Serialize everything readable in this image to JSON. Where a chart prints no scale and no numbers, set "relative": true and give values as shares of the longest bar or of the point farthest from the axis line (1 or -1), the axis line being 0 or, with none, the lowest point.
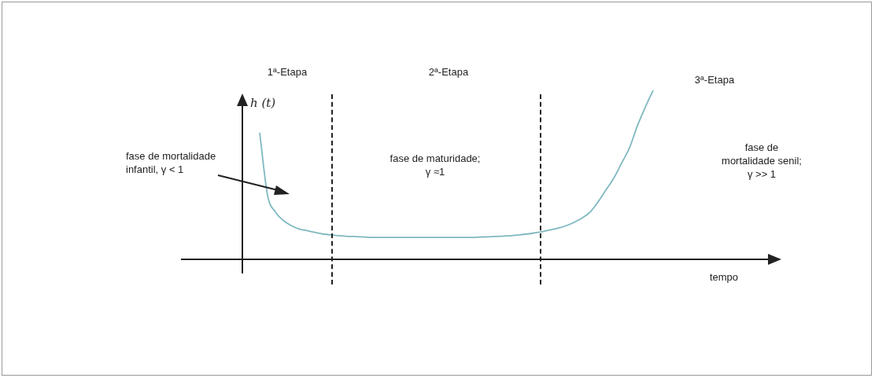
{
  "chart_data": {
    "type": "line",
    "relative": true,
    "ylabel": "h (t)",
    "xlabel": "tempo",
    "legend": false,
    "marker": "none",
    "categories": [
      null,
      null,
      null,
      null,
      null,
      null,
      null,
      null,
      null,
      null,
      null,
      null,
      null,
      null,
      null,
      null,
      null,
      null,
      null,
      null,
      null,
      null,
      null,
      null,
      null,
      null,
      null,
      null,
      null,
      null,
      null,
      null,
      null,
      null,
      null,
      null,
      null,
      null,
      null,
      null,
      null,
      null,
      null,
      null,
      null,
      null,
      null,
      null,
      null,
      null,
      null,
      null,
      null,
      null,
      null,
      null,
      null,
      null,
      null,
      null,
      null,
      null,
      null,
      null,
      null,
      null,
      null,
      null,
      null,
      null,
      null,
      null,
      null,
      null,
      null,
      null,
      null
    ],
    "series": [
      {
        "color": "#7fb8c0",
        "values": [
          null,
          null,
          null,
          null,
          null,
          null,
          null,
          null,
          null,
          null,
          0.75,
          0.38,
          0.28,
          0.23,
          0.2,
          0.18,
          0.17,
          0.16,
          0.15,
          0.145,
          0.14,
          0.137,
          0.135,
          0.133,
          0.13,
          0.13,
          0.13,
          0.13,
          0.13,
          0.13,
          0.13,
          0.13,
          0.13,
          0.13,
          0.13,
          0.13,
          0.13,
          0.13,
          0.132,
          0.133,
          0.135,
          0.138,
          0.14,
          0.145,
          0.15,
          0.157,
          0.165,
          0.175,
          0.185,
          0.2,
          0.22,
          0.245,
          0.28,
          0.34,
          0.41,
          0.48,
          0.57,
          0.66,
          0.79,
          0.9,
          1,
          null,
          null,
          null,
          null,
          null,
          null,
          null,
          null,
          null,
          null,
          null,
          null,
          null,
          null,
          null,
          null
        ]
      }
    ],
    "annotations": [
      "1ª-Etapa",
      "2ª-Etapa",
      "3ª-Etapa",
      "fase de mortalidade\ninfantil, γ < 1",
      "fase de maturidade;\nγ ≈1",
      "fase de\nmortalidade senil;\nγ >> 1"
    ]
  }
}
